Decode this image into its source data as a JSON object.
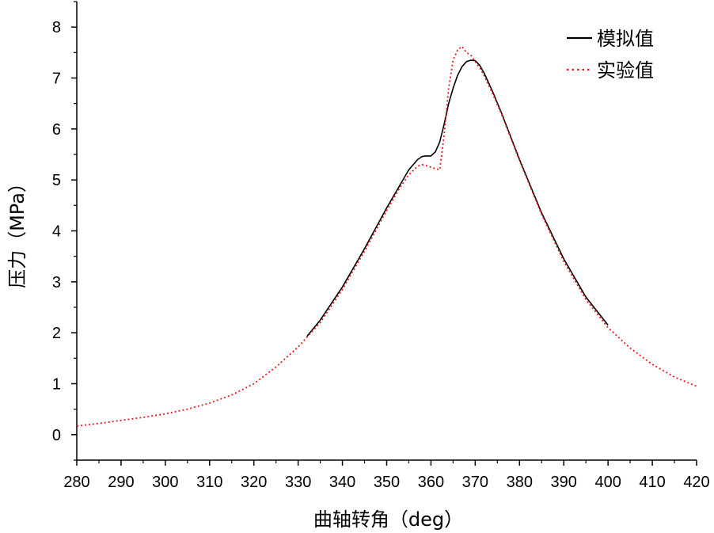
{
  "chart_data": {
    "type": "line",
    "title": "",
    "xlabel": "曲轴转角（deg）",
    "ylabel": "压力（MPa）",
    "xlim": [
      280,
      420
    ],
    "ylim": [
      -0.5,
      8.5
    ],
    "xticks": [
      280,
      290,
      300,
      310,
      320,
      330,
      340,
      350,
      360,
      370,
      380,
      390,
      400,
      410,
      420
    ],
    "yticks": [
      0,
      1,
      2,
      3,
      4,
      5,
      6,
      7,
      8
    ],
    "grid": false,
    "legend_position": "top-right",
    "series": [
      {
        "name": "模拟值",
        "color": "#000000",
        "style": "solid",
        "x": [
          332,
          335,
          340,
          345,
          350,
          353,
          355,
          357,
          358,
          359,
          360,
          361,
          362,
          363,
          364,
          365,
          366,
          367,
          368,
          369,
          370,
          371,
          372,
          374,
          376,
          378,
          380,
          385,
          390,
          395,
          400
        ],
        "y": [
          1.93,
          2.25,
          2.9,
          3.65,
          4.45,
          4.9,
          5.2,
          5.4,
          5.46,
          5.47,
          5.47,
          5.55,
          5.75,
          6.1,
          6.5,
          6.8,
          7.05,
          7.22,
          7.32,
          7.35,
          7.34,
          7.25,
          7.1,
          6.72,
          6.3,
          5.85,
          5.4,
          4.35,
          3.45,
          2.7,
          2.15
        ]
      },
      {
        "name": "实验值",
        "color": "#e8191e",
        "style": "dotted",
        "x": [
          280,
          285,
          290,
          295,
          300,
          305,
          310,
          315,
          320,
          325,
          330,
          335,
          340,
          345,
          350,
          353,
          355,
          357,
          358,
          359,
          360,
          361,
          362,
          363,
          364,
          365,
          366,
          367,
          368,
          369,
          370,
          371,
          372,
          374,
          376,
          378,
          380,
          385,
          390,
          395,
          400,
          405,
          410,
          415,
          420
        ],
        "y": [
          0.17,
          0.22,
          0.28,
          0.34,
          0.41,
          0.5,
          0.62,
          0.78,
          1.0,
          1.33,
          1.72,
          2.2,
          2.85,
          3.6,
          4.4,
          4.85,
          5.1,
          5.27,
          5.3,
          5.28,
          5.25,
          5.22,
          5.2,
          5.9,
          6.8,
          7.35,
          7.55,
          7.62,
          7.5,
          7.45,
          7.32,
          7.2,
          7.05,
          6.68,
          6.28,
          5.83,
          5.38,
          4.32,
          3.4,
          2.65,
          2.1,
          1.7,
          1.38,
          1.13,
          0.95
        ]
      }
    ]
  }
}
